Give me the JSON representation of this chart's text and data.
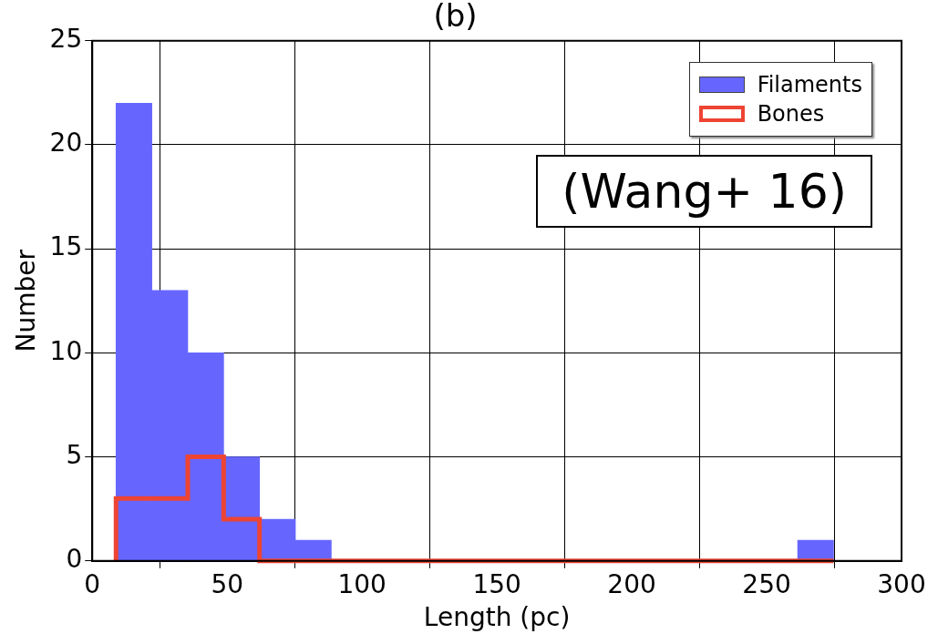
{
  "chart_data": {
    "type": "histogram",
    "title": "(b)",
    "xlabel": "Length (pc)",
    "ylabel": "Number",
    "bins": [
      8.8,
      22.1,
      35.4,
      48.7,
      62,
      75.3,
      88.6,
      101.9,
      115.2,
      128.5,
      141.8,
      155.1,
      168.4,
      181.7,
      195,
      208.3,
      221.6,
      234.9,
      248.2,
      261.5,
      274.8
    ],
    "series": [
      {
        "name": "Filaments",
        "color": "#6666ff",
        "values": [
          22,
          13,
          10,
          5,
          2,
          1,
          0,
          0,
          0,
          0,
          0,
          0,
          0,
          0,
          0,
          0,
          0,
          0,
          0,
          1
        ]
      },
      {
        "name": "Bones",
        "type": "step",
        "color": "#ee4433",
        "x": [
          8.8,
          22.1,
          35.4,
          48.7,
          62,
          75.3,
          88.6,
          101.9,
          115.2,
          128.5,
          141.8,
          155.1,
          168.4,
          181.7,
          195,
          208.3,
          221.6,
          234.9,
          248.2,
          261.5,
          274.8
        ],
        "values": [
          0,
          3,
          3,
          5,
          2,
          0,
          0,
          0,
          0,
          0,
          0,
          0,
          0,
          0,
          0,
          0,
          0,
          0,
          0,
          0,
          0
        ]
      }
    ],
    "xlim": [
      0,
      300
    ],
    "xticks": [
      0,
      50,
      100,
      150,
      200,
      250,
      300
    ],
    "ylim": [
      0,
      25
    ],
    "yticks": [
      0,
      5,
      10,
      15,
      20,
      25
    ],
    "grid": true,
    "legend": "top right",
    "annotations": [
      "(Wang+ 16)"
    ]
  }
}
